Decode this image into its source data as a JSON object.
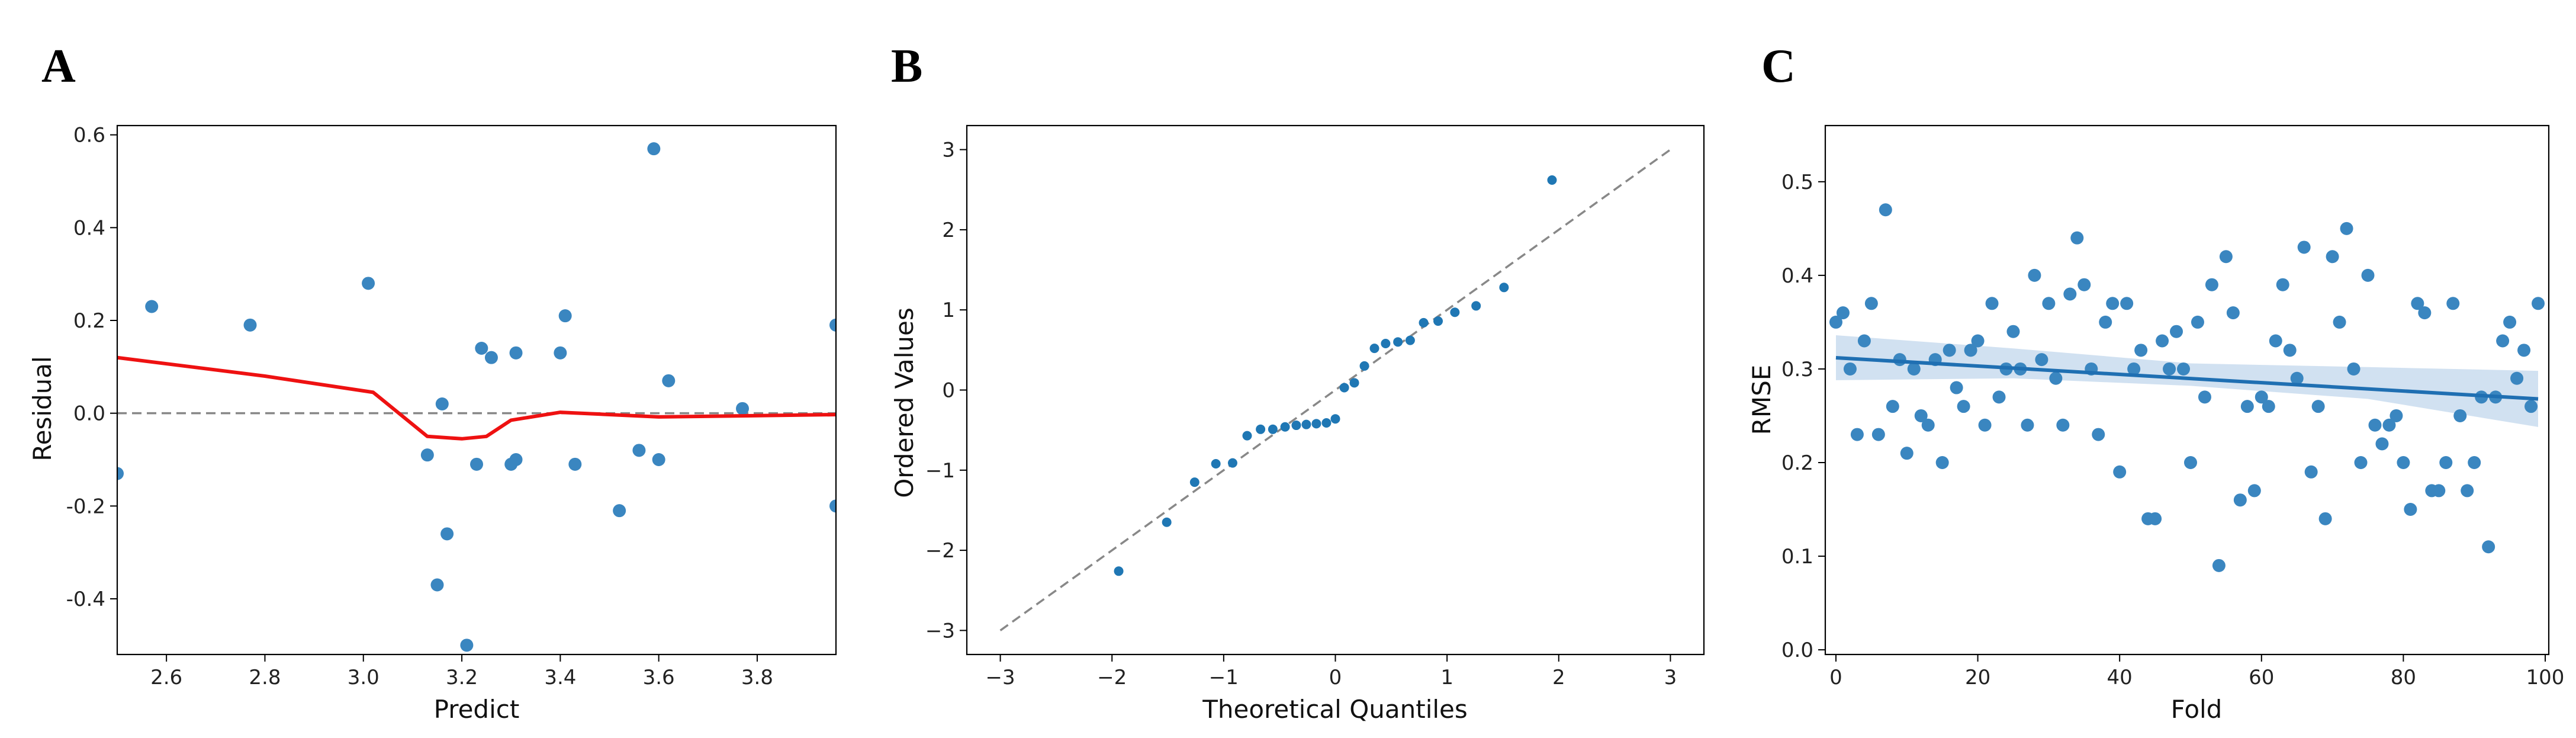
{
  "panels": [
    "A",
    "B",
    "C"
  ],
  "chart_data": [
    {
      "panel": "A",
      "type": "scatter",
      "xlabel": "Predict",
      "ylabel": "Residual",
      "xlim": [
        2.5,
        3.96
      ],
      "ylim": [
        -0.52,
        0.62
      ],
      "xticks": [
        2.6,
        2.8,
        3.0,
        3.2,
        3.4,
        3.6,
        3.8
      ],
      "yticks": [
        -0.4,
        -0.2,
        0.0,
        0.2,
        0.4,
        0.6
      ],
      "grid": false,
      "points": [
        [
          2.5,
          -0.13
        ],
        [
          2.57,
          0.23
        ],
        [
          2.77,
          0.19
        ],
        [
          3.01,
          0.28
        ],
        [
          3.13,
          -0.09
        ],
        [
          3.15,
          -0.37
        ],
        [
          3.16,
          0.02
        ],
        [
          3.17,
          -0.26
        ],
        [
          3.21,
          -0.5
        ],
        [
          3.23,
          -0.11
        ],
        [
          3.24,
          0.14
        ],
        [
          3.26,
          0.12
        ],
        [
          3.3,
          -0.11
        ],
        [
          3.31,
          0.13
        ],
        [
          3.31,
          -0.1
        ],
        [
          3.4,
          0.13
        ],
        [
          3.41,
          0.21
        ],
        [
          3.43,
          -0.11
        ],
        [
          3.52,
          -0.21
        ],
        [
          3.56,
          -0.08
        ],
        [
          3.59,
          0.57
        ],
        [
          3.6,
          -0.1
        ],
        [
          3.62,
          0.07
        ],
        [
          3.77,
          0.01
        ],
        [
          3.96,
          0.19
        ],
        [
          3.96,
          -0.2
        ]
      ],
      "smoother": [
        [
          2.5,
          0.12
        ],
        [
          2.8,
          0.08
        ],
        [
          3.02,
          0.045
        ],
        [
          3.13,
          -0.05
        ],
        [
          3.2,
          -0.055
        ],
        [
          3.25,
          -0.05
        ],
        [
          3.3,
          -0.015
        ],
        [
          3.4,
          0.002
        ],
        [
          3.6,
          -0.008
        ],
        [
          3.96,
          -0.003
        ]
      ],
      "reference_line": 0.0,
      "colors": {
        "points": "#3a86c0",
        "smoother": "#ee1111",
        "reference": "#888888"
      }
    },
    {
      "panel": "B",
      "type": "scatter",
      "xlabel": "Theoretical Quantiles",
      "ylabel": "Ordered Values",
      "xlim": [
        -3.3,
        3.3
      ],
      "ylim": [
        -3.3,
        3.3
      ],
      "xticks": [
        -3,
        -2,
        -1,
        0,
        1,
        2,
        3
      ],
      "yticks": [
        -3,
        -2,
        -1,
        0,
        1,
        2,
        3
      ],
      "grid": false,
      "points": [
        [
          -1.94,
          -2.26
        ],
        [
          -1.51,
          -1.65
        ],
        [
          -1.26,
          -1.15
        ],
        [
          -1.07,
          -0.92
        ],
        [
          -0.92,
          -0.91
        ],
        [
          -0.79,
          -0.57
        ],
        [
          -0.67,
          -0.49
        ],
        [
          -0.56,
          -0.49
        ],
        [
          -0.45,
          -0.46
        ],
        [
          -0.35,
          -0.44
        ],
        [
          -0.26,
          -0.43
        ],
        [
          -0.17,
          -0.42
        ],
        [
          -0.08,
          -0.41
        ],
        [
          0.0,
          -0.36
        ],
        [
          0.08,
          0.03
        ],
        [
          0.17,
          0.09
        ],
        [
          0.26,
          0.3
        ],
        [
          0.35,
          0.52
        ],
        [
          0.45,
          0.58
        ],
        [
          0.56,
          0.6
        ],
        [
          0.67,
          0.62
        ],
        [
          0.79,
          0.84
        ],
        [
          0.92,
          0.86
        ],
        [
          1.07,
          0.97
        ],
        [
          1.26,
          1.05
        ],
        [
          1.51,
          1.28
        ],
        [
          1.94,
          2.62
        ]
      ],
      "reference_fit": [
        [
          -3,
          -3
        ],
        [
          3,
          3
        ]
      ],
      "colors": {
        "points": "#1f77b4",
        "reference": "#888888"
      }
    },
    {
      "panel": "C",
      "type": "scatter",
      "xlabel": "Fold",
      "ylabel": "RMSE",
      "xlim": [
        -1.5,
        100.5
      ],
      "ylim": [
        -0.005,
        0.56
      ],
      "xticks": [
        0,
        20,
        40,
        60,
        80,
        100
      ],
      "yticks": [
        0.0,
        0.1,
        0.2,
        0.3,
        0.4,
        0.5
      ],
      "grid": false,
      "points": [
        [
          0,
          0.35
        ],
        [
          1,
          0.36
        ],
        [
          2,
          0.3
        ],
        [
          3,
          0.23
        ],
        [
          4,
          0.33
        ],
        [
          5,
          0.37
        ],
        [
          6,
          0.23
        ],
        [
          7,
          0.47
        ],
        [
          8,
          0.26
        ],
        [
          9,
          0.31
        ],
        [
          10,
          0.21
        ],
        [
          11,
          0.3
        ],
        [
          12,
          0.25
        ],
        [
          13,
          0.24
        ],
        [
          14,
          0.31
        ],
        [
          15,
          0.2
        ],
        [
          16,
          0.32
        ],
        [
          17,
          0.28
        ],
        [
          18,
          0.26
        ],
        [
          19,
          0.32
        ],
        [
          20,
          0.33
        ],
        [
          21,
          0.24
        ],
        [
          22,
          0.37
        ],
        [
          23,
          0.27
        ],
        [
          24,
          0.3
        ],
        [
          25,
          0.34
        ],
        [
          26,
          0.3
        ],
        [
          27,
          0.24
        ],
        [
          28,
          0.4
        ],
        [
          29,
          0.31
        ],
        [
          30,
          0.37
        ],
        [
          31,
          0.29
        ],
        [
          32,
          0.24
        ],
        [
          33,
          0.38
        ],
        [
          34,
          0.44
        ],
        [
          35,
          0.39
        ],
        [
          36,
          0.3
        ],
        [
          37,
          0.23
        ],
        [
          38,
          0.35
        ],
        [
          39,
          0.37
        ],
        [
          40,
          0.19
        ],
        [
          41,
          0.37
        ],
        [
          42,
          0.3
        ],
        [
          43,
          0.32
        ],
        [
          44,
          0.14
        ],
        [
          45,
          0.14
        ],
        [
          46,
          0.33
        ],
        [
          47,
          0.3
        ],
        [
          48,
          0.34
        ],
        [
          49,
          0.3
        ],
        [
          50,
          0.2
        ],
        [
          51,
          0.35
        ],
        [
          52,
          0.27
        ],
        [
          53,
          0.39
        ],
        [
          54,
          0.09
        ],
        [
          55,
          0.42
        ],
        [
          56,
          0.36
        ],
        [
          57,
          0.16
        ],
        [
          58,
          0.26
        ],
        [
          59,
          0.17
        ],
        [
          60,
          0.27
        ],
        [
          61,
          0.26
        ],
        [
          62,
          0.33
        ],
        [
          63,
          0.39
        ],
        [
          64,
          0.32
        ],
        [
          65,
          0.29
        ],
        [
          66,
          0.43
        ],
        [
          67,
          0.19
        ],
        [
          68,
          0.26
        ],
        [
          69,
          0.14
        ],
        [
          70,
          0.42
        ],
        [
          71,
          0.35
        ],
        [
          72,
          0.45
        ],
        [
          73,
          0.3
        ],
        [
          74,
          0.2
        ],
        [
          75,
          0.4
        ],
        [
          76,
          0.24
        ],
        [
          77,
          0.22
        ],
        [
          78,
          0.24
        ],
        [
          79,
          0.25
        ],
        [
          80,
          0.2
        ],
        [
          81,
          0.15
        ],
        [
          82,
          0.37
        ],
        [
          83,
          0.36
        ],
        [
          84,
          0.17
        ],
        [
          85,
          0.17
        ],
        [
          86,
          0.2
        ],
        [
          87,
          0.37
        ],
        [
          88,
          0.25
        ],
        [
          89,
          0.17
        ],
        [
          90,
          0.2
        ],
        [
          91,
          0.27
        ],
        [
          92,
          0.11
        ],
        [
          93,
          0.27
        ],
        [
          94,
          0.33
        ],
        [
          95,
          0.35
        ],
        [
          96,
          0.29
        ],
        [
          97,
          0.32
        ],
        [
          98,
          0.26
        ],
        [
          99,
          0.37
        ]
      ],
      "regression": {
        "x": [
          0,
          99
        ],
        "y": [
          0.312,
          0.268
        ]
      },
      "confidence_band": {
        "x": [
          0,
          25,
          50,
          75,
          99
        ],
        "lower": [
          0.288,
          0.29,
          0.282,
          0.268,
          0.238
        ],
        "upper": [
          0.336,
          0.322,
          0.306,
          0.302,
          0.298
        ]
      },
      "colors": {
        "points": "#3a86c0",
        "line": "#1f6fb2",
        "band": "#c9dcef"
      }
    }
  ]
}
